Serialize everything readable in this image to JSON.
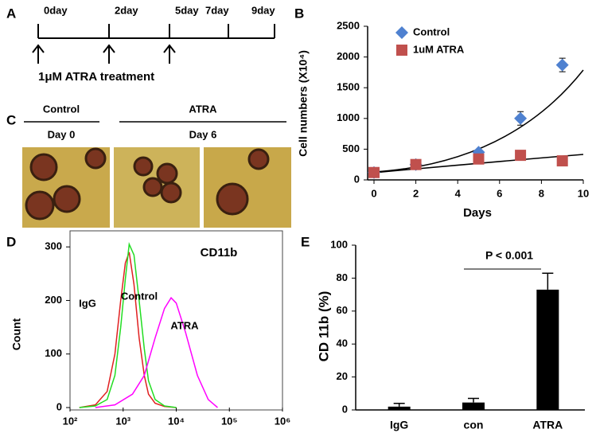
{
  "timeline": {
    "panel_label": "A",
    "days": [
      "0day",
      "2day",
      "5day",
      "7day",
      "9day"
    ],
    "treatment": "1μM ATRA treatment"
  },
  "micrographs": {
    "panel_label": "C",
    "groups": [
      "Control",
      "ATRA"
    ],
    "days": [
      "Day 0",
      "Day 6"
    ]
  },
  "chart_data": [
    {
      "type": "scatter",
      "panel_label": "B",
      "y_label": "Cell numbers (X10⁴)",
      "x_label": "Days",
      "xlim": [
        0,
        10
      ],
      "xticks": [
        0,
        2,
        4,
        6,
        8,
        10
      ],
      "ylim": [
        0,
        2500
      ],
      "yticks": [
        0,
        500,
        1000,
        1500,
        2000,
        2500
      ],
      "series": [
        {
          "name": "Control",
          "color": "#4f81d0",
          "marker": "diamond",
          "x": [
            0,
            2,
            5,
            7,
            9
          ],
          "values": [
            120,
            250,
            450,
            1000,
            1870
          ],
          "errors": [
            20,
            30,
            40,
            110,
            110
          ]
        },
        {
          "name": "1uM ATRA",
          "color": "#c0504d",
          "marker": "square",
          "x": [
            0,
            2,
            5,
            7,
            9
          ],
          "values": [
            120,
            250,
            340,
            400,
            310
          ],
          "errors": [
            20,
            30,
            30,
            30,
            30
          ]
        }
      ]
    },
    {
      "type": "line",
      "panel_label": "D",
      "title": "CD11b",
      "y_label": "Count",
      "xscale": "log",
      "xlim": [
        100,
        1000000
      ],
      "xticks": [
        {
          "value": 100,
          "label": "10²"
        },
        {
          "value": 1000,
          "label": "10³"
        },
        {
          "value": 10000,
          "label": "10⁴"
        },
        {
          "value": 100000,
          "label": "10⁵"
        },
        {
          "value": 1000000,
          "label": "10⁶"
        }
      ],
      "ylim": [
        0,
        330
      ],
      "yticks": [
        0,
        100,
        200,
        300
      ],
      "series": [
        {
          "name": "IgG",
          "color": "#e02020",
          "x": [
            150,
            300,
            500,
            700,
            900,
            1100,
            1300,
            1600,
            2000,
            2500,
            3000,
            4000,
            6000,
            10000
          ],
          "values": [
            0,
            5,
            30,
            100,
            200,
            270,
            290,
            230,
            130,
            60,
            25,
            8,
            2,
            0
          ]
        },
        {
          "name": "Control",
          "color": "#22dd22",
          "x": [
            150,
            300,
            500,
            700,
            900,
            1100,
            1300,
            1600,
            2000,
            2500,
            3000,
            4000,
            6000,
            10000
          ],
          "values": [
            0,
            3,
            15,
            60,
            150,
            240,
            305,
            285,
            200,
            110,
            50,
            15,
            3,
            0
          ]
        },
        {
          "name": "ATRA",
          "color": "#ff00ff",
          "x": [
            300,
            700,
            1500,
            2500,
            4000,
            6000,
            8000,
            10000,
            15000,
            25000,
            40000,
            60000
          ],
          "values": [
            0,
            5,
            25,
            60,
            130,
            185,
            205,
            195,
            140,
            60,
            15,
            0
          ]
        }
      ]
    },
    {
      "type": "bar",
      "panel_label": "E",
      "y_label": "CD 11b (%)",
      "annotation": "P < 0.001",
      "categories": [
        "IgG",
        "con",
        "ATRA"
      ],
      "values": [
        2,
        4.5,
        73
      ],
      "errors": [
        2,
        2.5,
        10
      ],
      "color": "#000000",
      "ylim": [
        0,
        100
      ],
      "yticks": [
        0,
        20,
        40,
        60,
        80,
        100
      ]
    }
  ]
}
